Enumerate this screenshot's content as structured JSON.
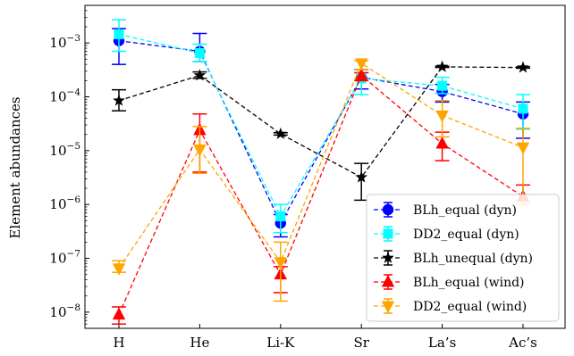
{
  "chart_data": {
    "type": "line",
    "title": "",
    "xlabel": "",
    "ylabel": "Element abundances",
    "yscale": "log",
    "ylim": [
      5e-09,
      0.005
    ],
    "grid": false,
    "legend_position": "lower-right",
    "categories": [
      "H",
      "He",
      "Li-K",
      "Sr",
      "La’s",
      "Ac’s"
    ],
    "y_ticks": [
      {
        "value": 1e-08,
        "base": "10",
        "exp": "−8"
      },
      {
        "value": 1e-07,
        "base": "10",
        "exp": "−7"
      },
      {
        "value": 1e-06,
        "base": "10",
        "exp": "−6"
      },
      {
        "value": 1e-05,
        "base": "10",
        "exp": "−5"
      },
      {
        "value": 0.0001,
        "base": "10",
        "exp": "−4"
      },
      {
        "value": 0.001,
        "base": "10",
        "exp": "−3"
      }
    ],
    "series": [
      {
        "name": "BLh_equal (dyn)",
        "color": "#0000ff",
        "marker": "circle",
        "values": [
          0.0011,
          0.0007,
          4.5e-07,
          0.00023,
          0.000125,
          4.8e-05
        ],
        "err_low": [
          0.0004,
          0.00045,
          2.5e-07,
          0.00014,
          8e-05,
          1.7e-05
        ],
        "err_high": [
          0.00185,
          0.0015,
          6.5e-07,
          0.00032,
          0.00017,
          8e-05
        ]
      },
      {
        "name": "DD2_equal (dyn)",
        "color": "#00ffff",
        "marker": "square",
        "values": [
          0.00145,
          0.00065,
          6e-07,
          0.00022,
          0.00016,
          6e-05
        ],
        "err_low": [
          0.0007,
          0.00045,
          3e-07,
          0.00011,
          0.000115,
          2.5e-05
        ],
        "err_high": [
          0.0027,
          0.00095,
          1e-06,
          0.00028,
          0.00023,
          0.00011
        ]
      },
      {
        "name": "BLh_unequal (dyn)",
        "color": "#000000",
        "marker": "star",
        "values": [
          8.5e-05,
          0.00025,
          2.05e-05,
          3.2e-06,
          0.00036,
          0.00035
        ],
        "err_low": [
          5.5e-05,
          0.00022,
          1.95e-05,
          1.2e-06,
          0.00035,
          0.00034
        ],
        "err_high": [
          0.000135,
          0.00029,
          2.15e-05,
          5.8e-06,
          0.00037,
          0.00036
        ]
      },
      {
        "name": "BLh_equal (wind)",
        "color": "#ff0000",
        "marker": "triangle-up",
        "values": [
          9e-09,
          2.4e-05,
          5e-08,
          0.00025,
          1.35e-05,
          1.4e-06
        ],
        "err_low": [
          6e-09,
          4e-06,
          2.3e-08,
          0.0002,
          6.5e-06,
          1e-06
        ],
        "err_high": [
          1.25e-08,
          4.8e-05,
          7e-08,
          0.00028,
          2.2e-05,
          2.3e-06
        ]
      },
      {
        "name": "DD2_equal (wind)",
        "color": "#ffa500",
        "marker": "triangle-down",
        "values": [
          6.5e-08,
          1.05e-05,
          8.5e-08,
          0.00042,
          4.5e-05,
          1.15e-05
        ],
        "err_low": [
          5.5e-08,
          3.8e-06,
          1.6e-08,
          0.00032,
          1.8e-05,
          1e-06
        ],
        "err_high": [
          9e-08,
          2.8e-05,
          2e-07,
          0.00047,
          8.5e-05,
          2.6e-05
        ]
      }
    ]
  }
}
